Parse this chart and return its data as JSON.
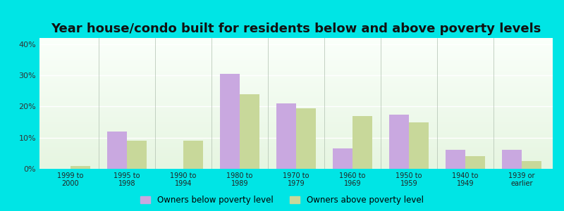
{
  "title": "Year house/condo built for residents below and above poverty levels",
  "categories": [
    "1999 to\n2000",
    "1995 to\n1998",
    "1990 to\n1994",
    "1980 to\n1989",
    "1970 to\n1979",
    "1960 to\n1969",
    "1950 to\n1959",
    "1940 to\n1949",
    "1939 or\nearlier"
  ],
  "below_poverty": [
    0.0,
    12.0,
    0.0,
    30.5,
    21.0,
    6.5,
    17.5,
    6.0,
    6.0
  ],
  "above_poverty": [
    1.0,
    9.0,
    9.0,
    24.0,
    19.5,
    17.0,
    15.0,
    4.0,
    2.5
  ],
  "below_color": "#c9a8e0",
  "above_color": "#c8d89a",
  "ylim": [
    0,
    42
  ],
  "yticks": [
    0,
    10,
    20,
    30,
    40
  ],
  "ytick_labels": [
    "0%",
    "10%",
    "20%",
    "30%",
    "40%"
  ],
  "legend_below": "Owners below poverty level",
  "legend_above": "Owners above poverty level",
  "outer_bg": "#00e5e5",
  "title_fontsize": 13,
  "bar_width": 0.35
}
